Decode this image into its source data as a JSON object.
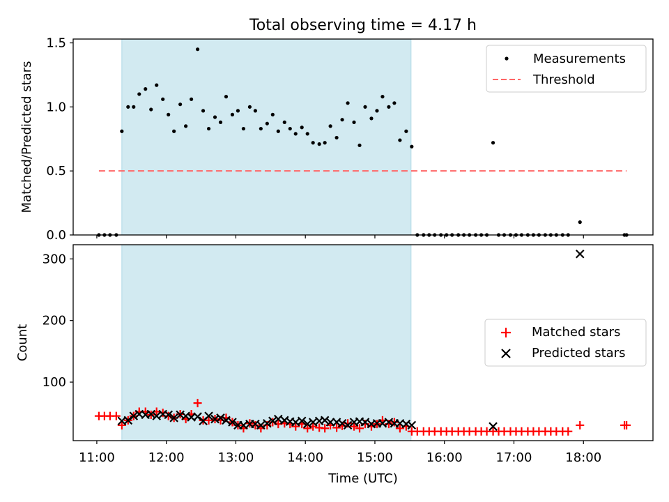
{
  "figure": {
    "title": "Total observing time = 4.17 h",
    "x_tick_labels": [
      "11:00",
      "12:00",
      "13:00",
      "14:00",
      "15:00",
      "16:00",
      "17:00",
      "18:00"
    ]
  },
  "colors": {
    "shade": "#add8e6",
    "threshold": "#ff6666",
    "matched": "#ff0000",
    "predicted": "#000000",
    "measurement": "#000000"
  },
  "chart_data": [
    {
      "type": "scatter",
      "panel": "top",
      "ylabel": "Matched/Predicted stars",
      "xlabel": "",
      "x_unit": "hours (UTC)",
      "xlim": [
        10.66,
        19.0
      ],
      "ylim": [
        0,
        1.53
      ],
      "y_ticks": [
        "0.0",
        "0.5",
        "1.0",
        "1.5"
      ],
      "observing_window": {
        "start": 11.36,
        "end": 15.52
      },
      "legend": {
        "position": "top-right",
        "entries": [
          "Measurements",
          "Threshold"
        ]
      },
      "threshold": {
        "name": "Threshold",
        "value": 0.5,
        "x_range": [
          11.03,
          18.62
        ],
        "style": "dashed"
      },
      "series": [
        {
          "name": "Measurements",
          "x": [
            11.03,
            11.11,
            11.19,
            11.28,
            11.36,
            11.45,
            11.53,
            11.61,
            11.7,
            11.78,
            11.86,
            11.95,
            12.03,
            12.11,
            12.2,
            12.28,
            12.36,
            12.45,
            12.53,
            12.61,
            12.7,
            12.78,
            12.86,
            12.95,
            13.03,
            13.11,
            13.2,
            13.28,
            13.36,
            13.45,
            13.53,
            13.61,
            13.7,
            13.78,
            13.86,
            13.95,
            14.03,
            14.11,
            14.2,
            14.28,
            14.36,
            14.45,
            14.53,
            14.61,
            14.7,
            14.78,
            14.86,
            14.95,
            15.03,
            15.11,
            15.2,
            15.28,
            15.36,
            15.45,
            15.53,
            15.61,
            15.7,
            15.78,
            15.86,
            15.95,
            16.03,
            16.11,
            16.2,
            16.28,
            16.36,
            16.45,
            16.53,
            16.61,
            16.7,
            16.78,
            16.86,
            16.95,
            17.03,
            17.11,
            17.2,
            17.28,
            17.36,
            17.45,
            17.53,
            17.61,
            17.7,
            17.78,
            17.95,
            18.59,
            18.62
          ],
          "y": [
            0,
            0,
            0,
            0,
            0.81,
            1.0,
            1.0,
            1.1,
            1.14,
            0.98,
            1.17,
            1.06,
            0.94,
            0.81,
            1.02,
            0.85,
            1.06,
            1.45,
            0.97,
            0.83,
            0.92,
            0.88,
            1.08,
            0.94,
            0.97,
            0.83,
            1.0,
            0.97,
            0.83,
            0.87,
            0.94,
            0.81,
            0.88,
            0.83,
            0.79,
            0.84,
            0.79,
            0.72,
            0.71,
            0.72,
            0.85,
            0.76,
            0.9,
            1.03,
            0.88,
            0.7,
            1.0,
            0.91,
            0.97,
            1.08,
            1.0,
            1.03,
            0.74,
            0.81,
            0.69,
            0,
            0,
            0,
            0,
            0,
            0,
            0,
            0,
            0,
            0,
            0,
            0,
            0,
            0.72,
            0,
            0,
            0,
            0,
            0,
            0,
            0,
            0,
            0,
            0,
            0,
            0,
            0,
            0.1,
            0,
            0
          ]
        }
      ]
    },
    {
      "type": "scatter",
      "panel": "bottom",
      "ylabel": "Count",
      "xlabel": "Time (UTC)",
      "x_unit": "hours (UTC)",
      "xlim": [
        10.66,
        19.0
      ],
      "ylim": [
        5,
        323
      ],
      "y_ticks": [
        "100",
        "200",
        "300"
      ],
      "x_tick_labels": [
        "11:00",
        "12:00",
        "13:00",
        "14:00",
        "15:00",
        "16:00",
        "17:00",
        "18:00"
      ],
      "observing_window": {
        "start": 11.36,
        "end": 15.52
      },
      "legend": {
        "position": "center-right",
        "entries": [
          "Matched stars",
          "Predicted stars"
        ]
      },
      "series": [
        {
          "name": "Matched stars",
          "marker": "plus",
          "x": [
            11.03,
            11.11,
            11.19,
            11.28,
            11.36,
            11.45,
            11.53,
            11.61,
            11.7,
            11.78,
            11.86,
            11.95,
            12.03,
            12.11,
            12.2,
            12.28,
            12.36,
            12.45,
            12.53,
            12.61,
            12.7,
            12.78,
            12.86,
            12.95,
            13.03,
            13.11,
            13.2,
            13.28,
            13.36,
            13.45,
            13.53,
            13.61,
            13.7,
            13.78,
            13.86,
            13.95,
            14.03,
            14.11,
            14.2,
            14.28,
            14.36,
            14.45,
            14.53,
            14.61,
            14.7,
            14.78,
            14.86,
            14.95,
            15.03,
            15.11,
            15.2,
            15.28,
            15.36,
            15.45,
            15.53,
            15.61,
            15.7,
            15.78,
            15.86,
            15.95,
            16.03,
            16.11,
            16.2,
            16.28,
            16.36,
            16.45,
            16.53,
            16.61,
            16.7,
            16.78,
            16.86,
            16.95,
            17.03,
            17.11,
            17.2,
            17.28,
            17.36,
            17.45,
            17.53,
            17.61,
            17.7,
            17.78,
            17.95,
            18.59,
            18.62
          ],
          "y": [
            45,
            45,
            45,
            45,
            30,
            38,
            45,
            52,
            52,
            47,
            52,
            50,
            45,
            42,
            48,
            40,
            48,
            66,
            38,
            38,
            40,
            38,
            42,
            35,
            30,
            25,
            33,
            30,
            25,
            30,
            35,
            32,
            33,
            32,
            28,
            32,
            25,
            28,
            26,
            25,
            30,
            26,
            29,
            33,
            28,
            25,
            32,
            28,
            32,
            38,
            32,
            35,
            25,
            28,
            20,
            20,
            20,
            20,
            20,
            20,
            20,
            20,
            20,
            20,
            20,
            20,
            20,
            20,
            20,
            20,
            20,
            20,
            20,
            20,
            20,
            20,
            20,
            20,
            20,
            20,
            20,
            20,
            30,
            30,
            30
          ]
        },
        {
          "name": "Predicted stars",
          "marker": "x",
          "x": [
            11.36,
            11.45,
            11.53,
            11.61,
            11.7,
            11.78,
            11.86,
            11.95,
            12.03,
            12.11,
            12.2,
            12.28,
            12.36,
            12.45,
            12.53,
            12.61,
            12.7,
            12.78,
            12.86,
            12.95,
            13.03,
            13.11,
            13.2,
            13.28,
            13.36,
            13.45,
            13.53,
            13.61,
            13.7,
            13.78,
            13.86,
            13.95,
            14.03,
            14.11,
            14.2,
            14.28,
            14.36,
            14.45,
            14.53,
            14.61,
            14.7,
            14.78,
            14.86,
            14.95,
            15.03,
            15.11,
            15.2,
            15.28,
            15.36,
            15.45,
            15.53,
            16.7,
            17.95
          ],
          "y": [
            37,
            38,
            45,
            48,
            47,
            48,
            45,
            48,
            47,
            42,
            47,
            45,
            43,
            44,
            37,
            45,
            40,
            42,
            38,
            35,
            30,
            30,
            32,
            32,
            30,
            33,
            37,
            40,
            38,
            36,
            35,
            37,
            32,
            35,
            37,
            38,
            35,
            35,
            33,
            30,
            35,
            36,
            35,
            32,
            33,
            33,
            35,
            33,
            33,
            32,
            30,
            28,
            308
          ]
        }
      ]
    }
  ]
}
